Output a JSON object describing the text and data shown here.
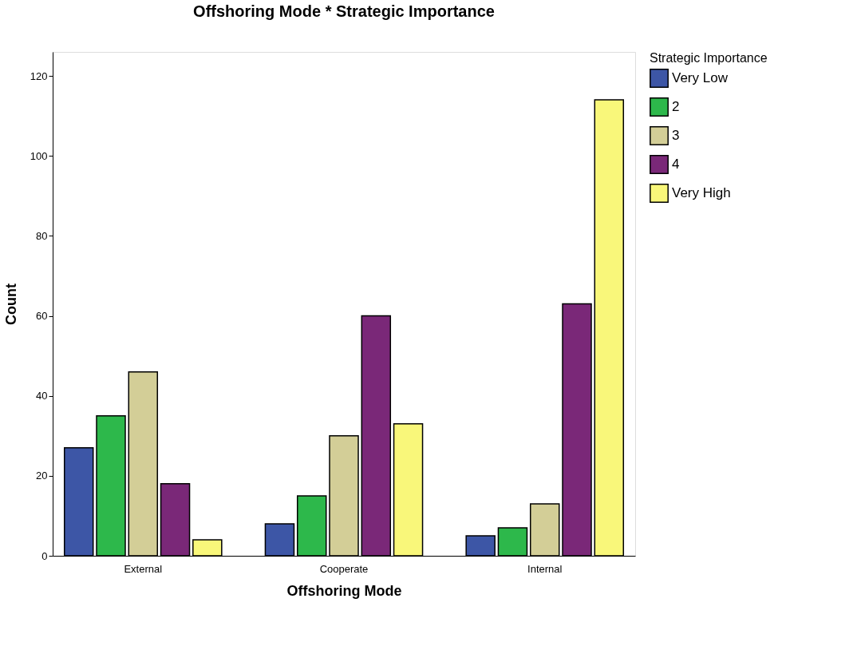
{
  "chart_data": {
    "type": "bar",
    "title": "Offshoring Mode * Strategic Importance",
    "xlabel": "Offshoring Mode",
    "ylabel": "Count",
    "legend_title": "Strategic Importance",
    "categories": [
      "External",
      "Cooperate",
      "Internal"
    ],
    "series": [
      {
        "name": "Very Low",
        "color": "#3d56a6",
        "values": [
          27,
          8,
          5
        ]
      },
      {
        "name": "2",
        "color": "#2db84b",
        "values": [
          35,
          15,
          7
        ]
      },
      {
        "name": "3",
        "color": "#d3ce97",
        "values": [
          46,
          30,
          13
        ]
      },
      {
        "name": "4",
        "color": "#7a2878",
        "values": [
          18,
          60,
          63
        ]
      },
      {
        "name": "Very High",
        "color": "#f9f77a",
        "values": [
          4,
          33,
          114
        ]
      }
    ],
    "ylim": [
      0,
      126
    ],
    "yticks": [
      0,
      20,
      40,
      60,
      80,
      100,
      120
    ],
    "grid": false,
    "legend": "right"
  }
}
